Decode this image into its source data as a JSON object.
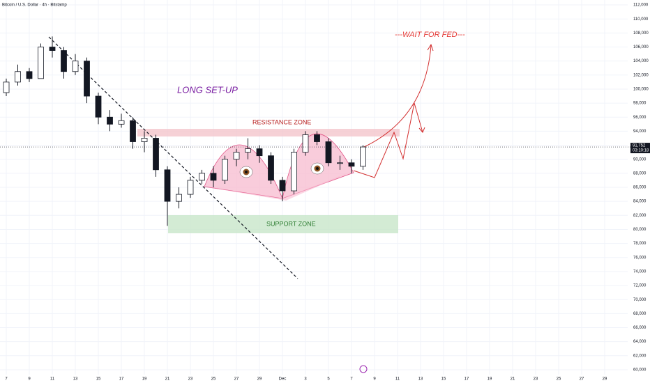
{
  "chart_data": {
    "type": "candlestick",
    "title": "Bitcoin / U.S. Dollar · 4h · Bitstamp",
    "annotations": [
      "LONG SET-UP",
      "RESISTANCE ZONE",
      "SUPPORT ZONE",
      "---WAIT FOR FED---"
    ],
    "x": [
      0,
      1,
      2,
      3,
      4,
      5,
      6,
      7,
      8,
      9,
      10,
      11,
      12,
      13,
      14,
      15,
      16,
      17,
      18,
      19,
      20,
      21,
      22,
      23,
      24,
      25,
      26,
      27,
      28,
      29,
      30,
      31
    ],
    "open": [
      99500,
      101000,
      102500,
      101500,
      106000,
      105500,
      102500,
      104000,
      99000,
      96000,
      95000,
      95500,
      92500,
      93000,
      88500,
      84000,
      85000,
      87000,
      88000,
      87000,
      90000,
      91000,
      91500,
      90500,
      87000,
      85500,
      91000,
      93500,
      92500,
      89500,
      89500,
      89000
    ],
    "high": [
      101500,
      103500,
      103000,
      106500,
      107500,
      106000,
      105000,
      104500,
      99500,
      97000,
      96500,
      96000,
      94000,
      93500,
      89000,
      86000,
      87500,
      88500,
      89000,
      90500,
      91500,
      93000,
      92000,
      91000,
      87500,
      91500,
      94000,
      94000,
      93000,
      90500,
      90000,
      92000
    ],
    "low": [
      99000,
      100500,
      101000,
      101500,
      104500,
      101500,
      102000,
      98000,
      95000,
      94000,
      94500,
      91500,
      91000,
      87500,
      80500,
      83000,
      84500,
      86500,
      86000,
      86500,
      89000,
      90000,
      89500,
      86500,
      84000,
      85000,
      90500,
      92000,
      89000,
      88500,
      88000,
      88500
    ],
    "close": [
      101000,
      102500,
      101500,
      106000,
      105500,
      102500,
      104000,
      99000,
      96000,
      95000,
      95500,
      92500,
      93000,
      88500,
      84000,
      85000,
      87000,
      88000,
      87000,
      90000,
      91000,
      91500,
      90500,
      87000,
      85500,
      91000,
      93500,
      92500,
      89500,
      89500,
      89000,
      91752
    ],
    "up_color": "#ffffff",
    "down_color": "#131722",
    "current_price": {
      "value": 91752,
      "label": "91,752"
    },
    "countdown": "03:10:18",
    "xlim": [
      -0.5,
      54
    ],
    "xticks": [
      {
        "value": 0,
        "label": "7"
      },
      {
        "value": 2,
        "label": "9"
      },
      {
        "value": 4,
        "label": "11"
      },
      {
        "value": 6,
        "label": "13"
      },
      {
        "value": 8,
        "label": "15"
      },
      {
        "value": 10,
        "label": "17"
      },
      {
        "value": 12,
        "label": "19"
      },
      {
        "value": 14,
        "label": "21"
      },
      {
        "value": 16,
        "label": "23"
      },
      {
        "value": 18,
        "label": "25"
      },
      {
        "value": 20,
        "label": "27"
      },
      {
        "value": 22,
        "label": "29"
      },
      {
        "value": 24,
        "label": "Dec"
      },
      {
        "value": 26,
        "label": "3"
      },
      {
        "value": 28,
        "label": "5"
      },
      {
        "value": 30,
        "label": "7"
      },
      {
        "value": 32,
        "label": "9"
      },
      {
        "value": 34,
        "label": "11"
      },
      {
        "value": 36,
        "label": "13"
      },
      {
        "value": 38,
        "label": "15"
      },
      {
        "value": 40,
        "label": "17"
      },
      {
        "value": 42,
        "label": "19"
      },
      {
        "value": 44,
        "label": "21"
      },
      {
        "value": 46,
        "label": "23"
      },
      {
        "value": 48,
        "label": "25"
      },
      {
        "value": 50,
        "label": "27"
      },
      {
        "value": 52,
        "label": "29"
      }
    ],
    "ylim": [
      59300,
      112700
    ],
    "yticks": [
      {
        "value": 60000,
        "label": "60,000"
      },
      {
        "value": 62000,
        "label": "62,000"
      },
      {
        "value": 64000,
        "label": "64,000"
      },
      {
        "value": 66000,
        "label": "66,000"
      },
      {
        "value": 68000,
        "label": "68,000"
      },
      {
        "value": 70000,
        "label": "70,000"
      },
      {
        "value": 72000,
        "label": "72,000"
      },
      {
        "value": 74000,
        "label": "74,000"
      },
      {
        "value": 76000,
        "label": "76,000"
      },
      {
        "value": 78000,
        "label": "78,000"
      },
      {
        "value": 80000,
        "label": "80,000"
      },
      {
        "value": 82000,
        "label": "82,000"
      },
      {
        "value": 84000,
        "label": "84,000"
      },
      {
        "value": 86000,
        "label": "86,000"
      },
      {
        "value": 88000,
        "label": "88,000"
      },
      {
        "value": 90000,
        "label": "90,000"
      },
      {
        "value": 92000,
        "label": "92,000"
      },
      {
        "value": 94000,
        "label": "94,000"
      },
      {
        "value": 96000,
        "label": "96,000"
      },
      {
        "value": 98000,
        "label": "98,000"
      },
      {
        "value": 100000,
        "label": "100,000"
      },
      {
        "value": 102000,
        "label": "102,000"
      },
      {
        "value": 104000,
        "label": "104,000"
      },
      {
        "value": 106000,
        "label": "106,000"
      },
      {
        "value": 108000,
        "label": "108,000"
      },
      {
        "value": 110000,
        "label": "110,000"
      },
      {
        "value": 112000,
        "label": "112,000"
      }
    ],
    "grid": true
  }
}
